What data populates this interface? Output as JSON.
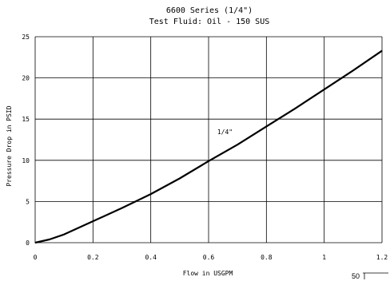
{
  "chart_data": {
    "type": "line",
    "title": "6600 Series (1/4\")",
    "subtitle": "Test Fluid: Oil - 150 SUS",
    "xlabel": "Flow in USGPM",
    "ylabel": "Pressure Drop in PSID",
    "xlim": [
      0,
      1.2
    ],
    "ylim": [
      0,
      25
    ],
    "x_ticks": [
      "0",
      "0.2",
      "0.4",
      "0.6",
      "0.8",
      "1",
      "1.2"
    ],
    "y_ticks": [
      "0",
      "5",
      "10",
      "15",
      "20",
      "25"
    ],
    "grid": true,
    "series": [
      {
        "name": "1/4\"",
        "x": [
          0,
          0.05,
          0.1,
          0.15,
          0.2,
          0.3,
          0.4,
          0.5,
          0.6,
          0.7,
          0.8,
          0.9,
          1.0,
          1.1,
          1.2
        ],
        "y": [
          0,
          0.4,
          1.0,
          1.8,
          2.6,
          4.2,
          5.9,
          7.8,
          9.9,
          11.9,
          14.1,
          16.3,
          18.6,
          20.9,
          23.3
        ]
      }
    ]
  },
  "footer_text": "50"
}
